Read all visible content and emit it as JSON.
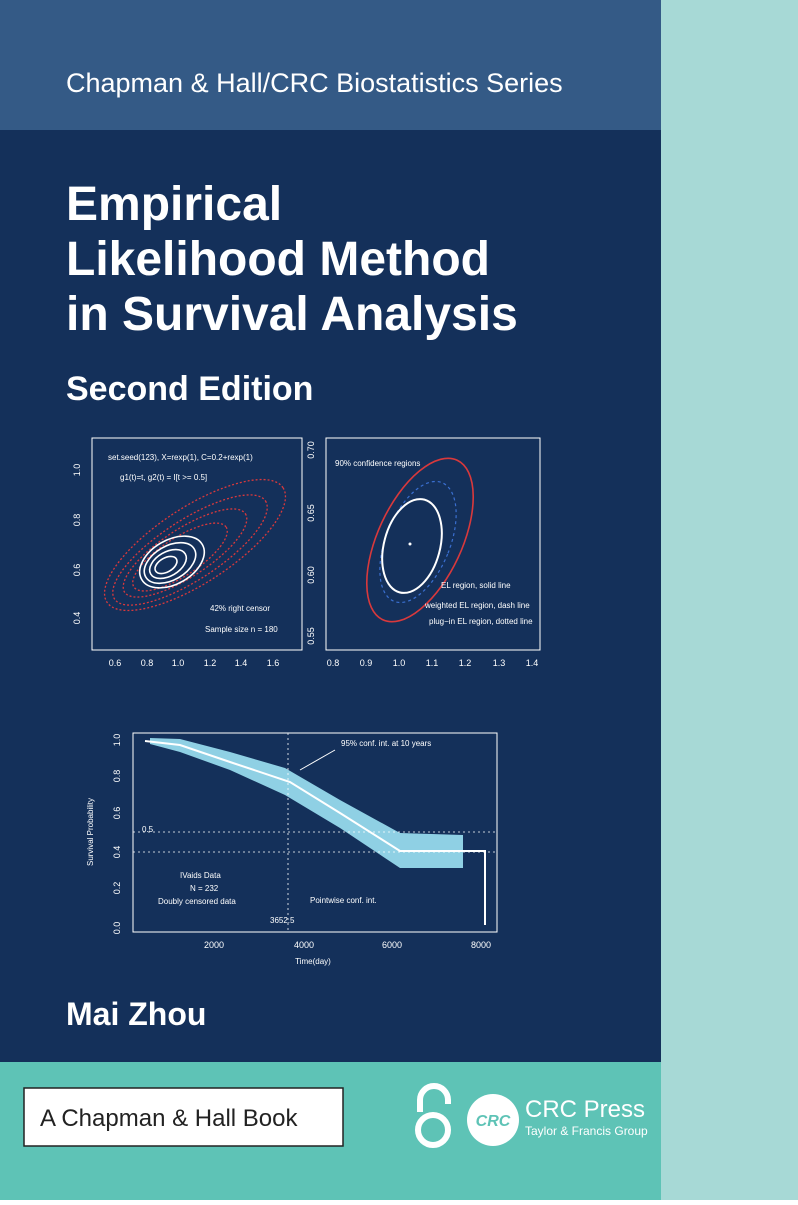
{
  "cover": {
    "series": "Chapman & Hall/CRC Biostatistics Series",
    "title_lines": [
      "Empirical",
      "Likelihood Method",
      "in Survival Analysis"
    ],
    "edition": "Second Edition",
    "author": "Mai Zhou",
    "imprint": "A Chapman & Hall Book",
    "publisher": "CRC Press",
    "publisher_group": "Taylor & Francis Group",
    "publisher_logo": "CRC"
  },
  "figure1": {
    "xticks": [
      "0.6",
      "0.8",
      "1.0",
      "1.2",
      "1.4",
      "1.6"
    ],
    "yticks": [
      "0.4",
      "0.6",
      "0.8",
      "1.0"
    ],
    "notes": [
      "set.seed(123), X=rexp(1), C=0.2+rexp(1)",
      "g1(t)=t, g2(t) = I[t >= 0.5]",
      "42% right censor",
      "Sample size n = 180"
    ]
  },
  "figure2": {
    "xticks": [
      "0.8",
      "0.9",
      "1.0",
      "1.1",
      "1.2",
      "1.3",
      "1.4"
    ],
    "yticks": [
      "0.55",
      "0.60",
      "0.65",
      "0.70"
    ],
    "notes": [
      "90% confidence regions",
      "EL region, solid line",
      "weighted EL region, dash line",
      "plug−in EL region, dotted line"
    ]
  },
  "figure3": {
    "xticks": [
      "2000",
      "4000",
      "6000",
      "8000"
    ],
    "yticks": [
      "0.0",
      "0.2",
      "0.4",
      "0.6",
      "0.8",
      "1.0"
    ],
    "xlabel": "Time(day)",
    "ylabel": "Survival Probability",
    "notes": [
      "95% conf. int. at 10 years",
      "0.5",
      "IVaids Data",
      "N = 232",
      "Doubly censored data",
      "Pointwise conf. int.",
      "3652.5"
    ]
  }
}
